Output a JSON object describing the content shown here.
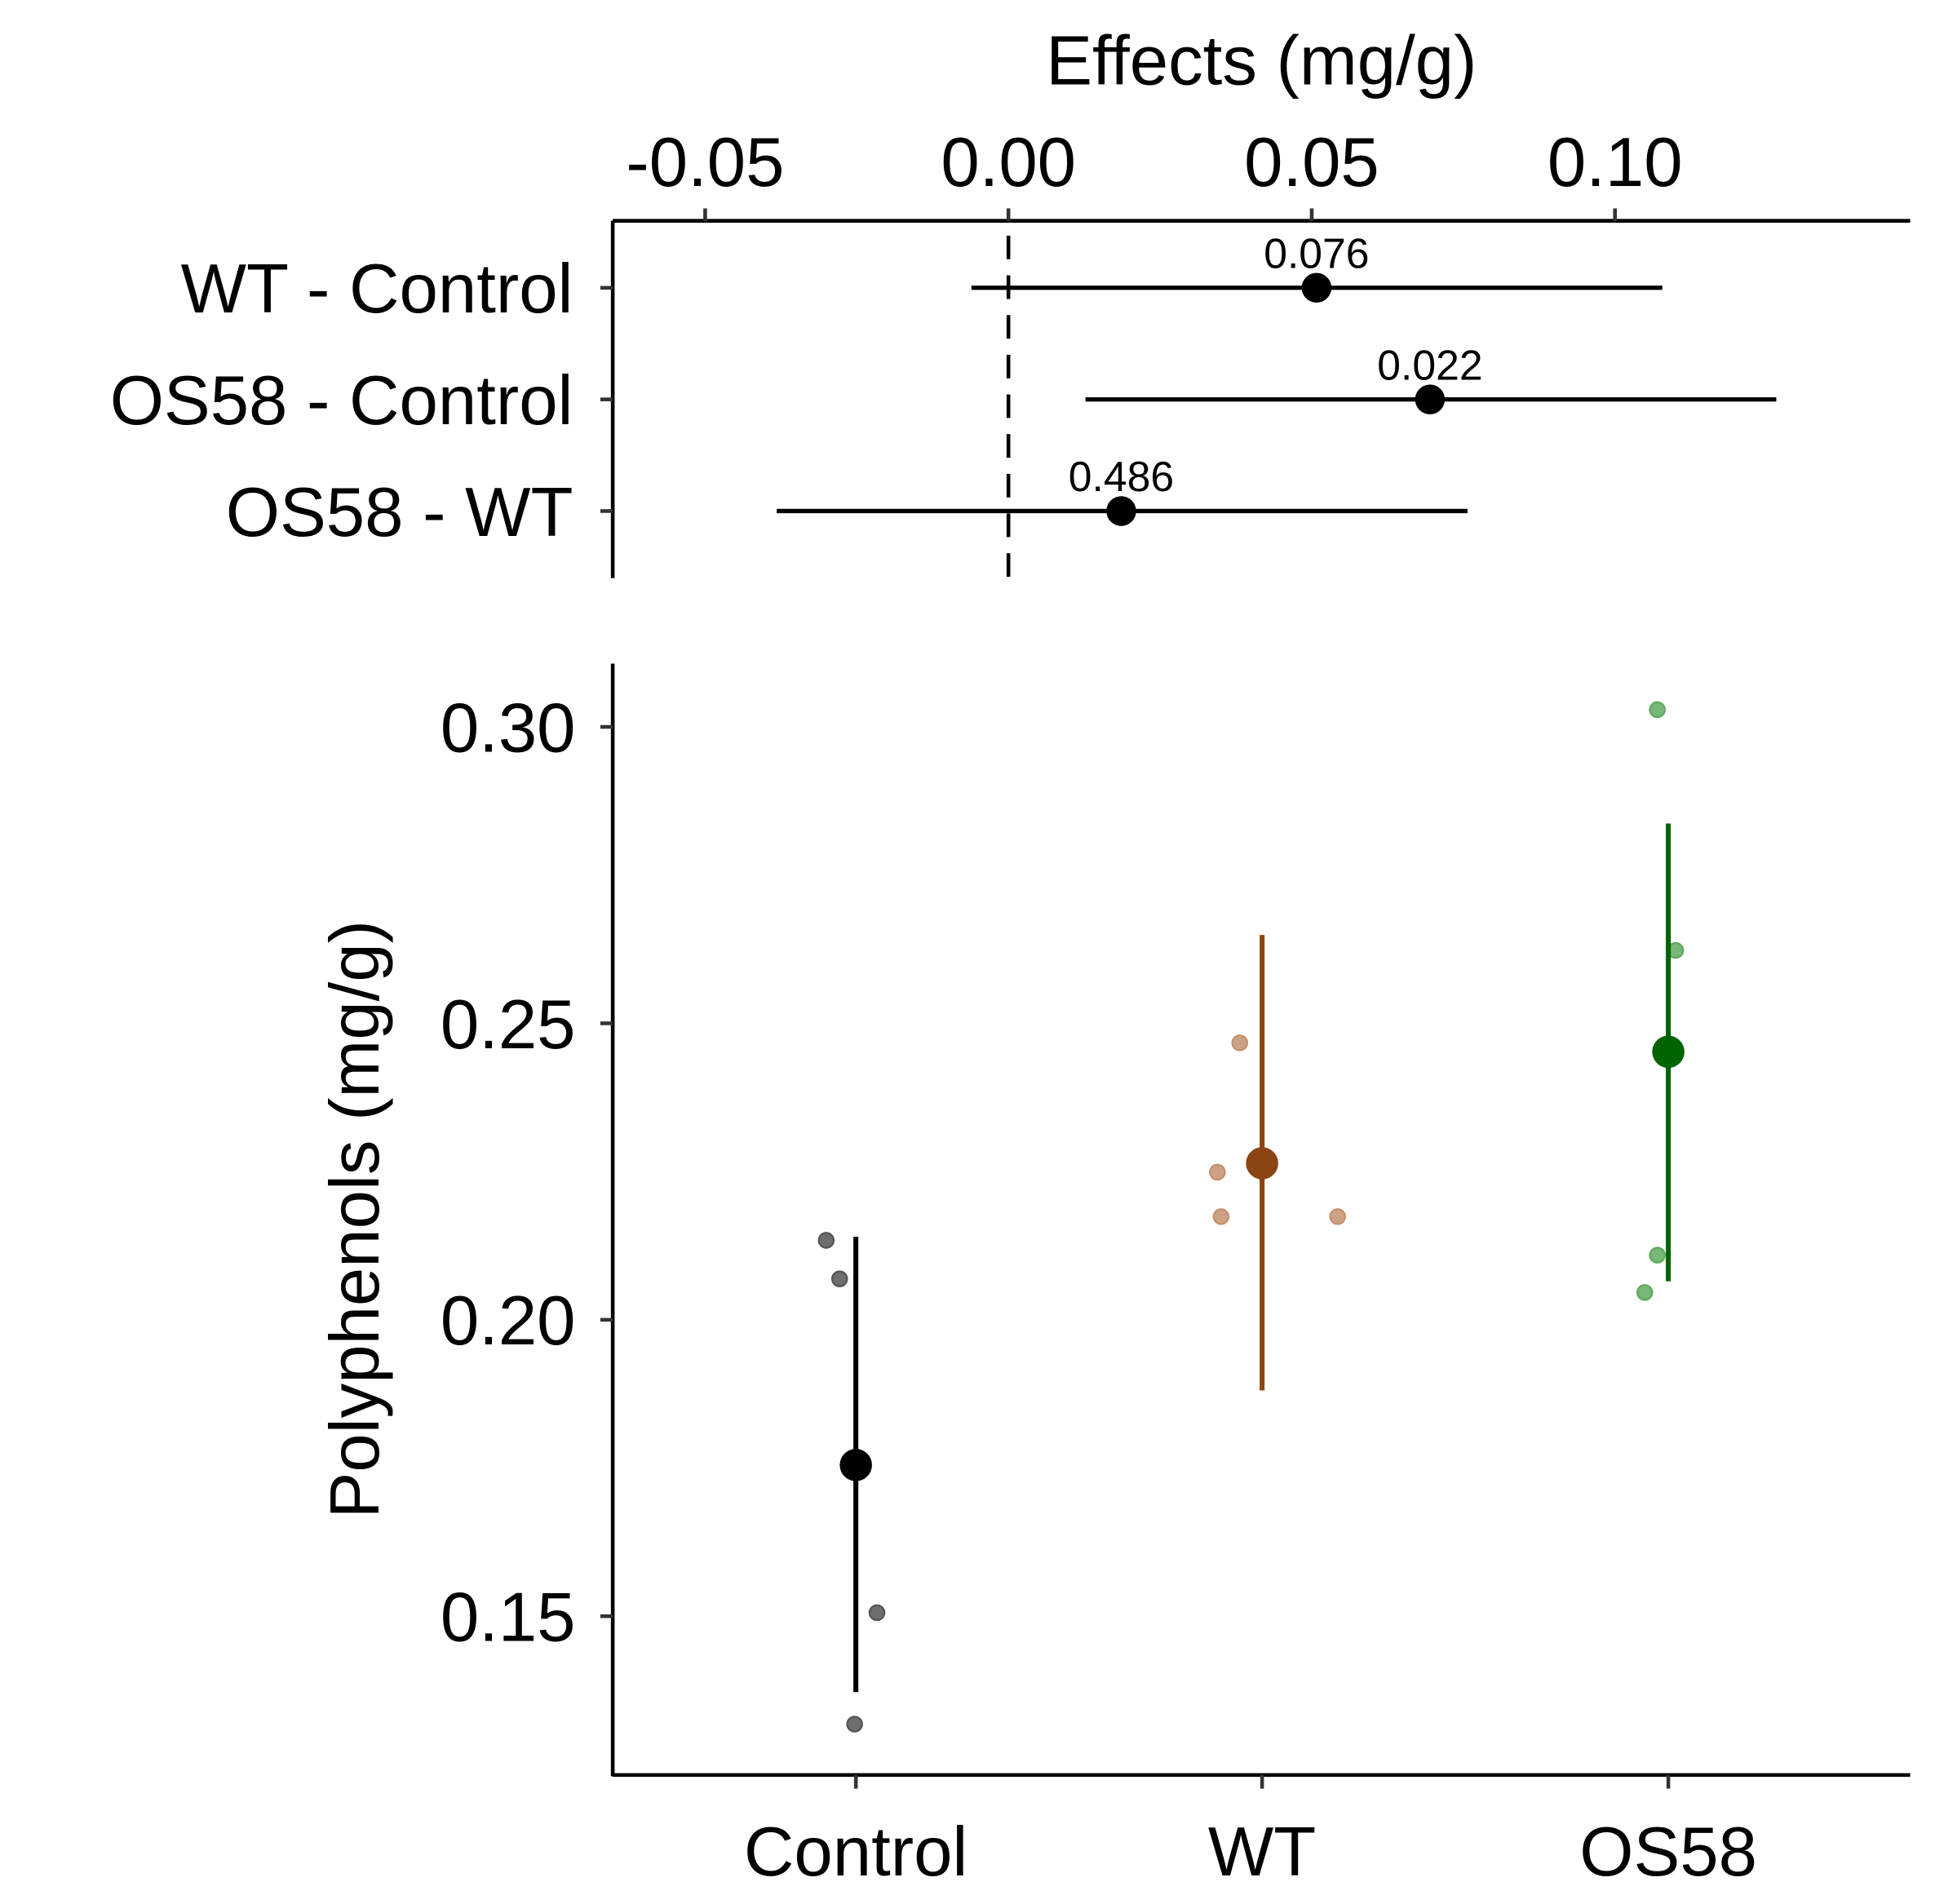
{
  "chart_data": [
    {
      "type": "forest",
      "title": "",
      "xlabel": "Effects (mg/g)",
      "xlim": [
        -0.065,
        0.149
      ],
      "xticks": [
        -0.05,
        0.0,
        0.05,
        0.1
      ],
      "xtick_labels": [
        "-0.05",
        "0.00",
        "0.05",
        "0.10"
      ],
      "reference_line": 0,
      "rows": [
        {
          "label": "WT - Control",
          "estimate": 0.0508,
          "lower": -0.0061,
          "upper": 0.1078,
          "p_label": "0.076"
        },
        {
          "label": "OS58 - Control",
          "estimate": 0.0695,
          "lower": 0.0127,
          "upper": 0.1266,
          "p_label": "0.022"
        },
        {
          "label": "OS58 - WT",
          "estimate": 0.0186,
          "lower": -0.0382,
          "upper": 0.0757,
          "p_label": "0.486"
        }
      ]
    },
    {
      "type": "scatter",
      "xlabel": "",
      "ylabel": "Polyphenols (mg/g)",
      "ylim": [
        0.1258,
        0.3133
      ],
      "yticks": [
        0.15,
        0.2,
        0.25,
        0.3
      ],
      "ytick_labels": [
        "0.15",
        "0.20",
        "0.25",
        "0.30"
      ],
      "grid": false,
      "categories": [
        "Control",
        "WT",
        "OS58"
      ],
      "groups": [
        {
          "name": "Control",
          "color": "#000000",
          "point_color": "#555555",
          "mean": 0.1755,
          "ci": [
            0.1372,
            0.214
          ],
          "points": [
            0.2134,
            0.2069,
            0.1506,
            0.1318
          ],
          "jitter": [
            -0.073,
            -0.04,
            0.052,
            -0.003
          ]
        },
        {
          "name": "WT",
          "color": "#8B4513",
          "point_color": "#C4916E",
          "mean": 0.2264,
          "ci": [
            0.1881,
            0.2649
          ],
          "points": [
            0.2467,
            0.2249,
            0.2174,
            0.2174
          ],
          "jitter": [
            -0.055,
            -0.11,
            -0.101,
            0.186
          ]
        },
        {
          "name": "OS58",
          "color": "#006400",
          "point_color": "#5FAA5F",
          "mean": 0.2452,
          "ci": [
            0.2065,
            0.2837
          ],
          "points": [
            0.3029,
            0.2623,
            0.2109,
            0.2046
          ],
          "jitter": [
            -0.027,
            0.018,
            -0.027,
            -0.058
          ]
        }
      ]
    }
  ]
}
